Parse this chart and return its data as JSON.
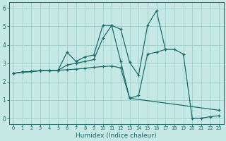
{
  "xlabel": "Humidex (Indice chaleur)",
  "bg_color": "#c5e8e5",
  "line_color": "#1a6b6b",
  "grid_color": "#9dcfcb",
  "xlim": [
    -0.5,
    23.5
  ],
  "ylim": [
    -0.3,
    6.3
  ],
  "xticks": [
    0,
    1,
    2,
    3,
    4,
    5,
    6,
    7,
    8,
    9,
    10,
    11,
    12,
    13,
    14,
    15,
    16,
    17,
    18,
    19,
    20,
    21,
    22,
    23
  ],
  "yticks": [
    0,
    1,
    2,
    3,
    4,
    5,
    6
  ],
  "line1_x": [
    0,
    1,
    2,
    3,
    4,
    5,
    6,
    7,
    8,
    9,
    10,
    11,
    12,
    13,
    14,
    15,
    16,
    17,
    18,
    19,
    20,
    21,
    22,
    23
  ],
  "line1_y": [
    2.45,
    2.52,
    2.55,
    2.6,
    2.6,
    2.62,
    2.65,
    2.68,
    2.73,
    2.78,
    2.82,
    2.85,
    2.75,
    1.1,
    1.25,
    3.5,
    3.6,
    3.75,
    3.75,
    3.5,
    0.02,
    0.02,
    0.1,
    0.15
  ],
  "line2_x": [
    0,
    1,
    2,
    3,
    4,
    5,
    6,
    7,
    8,
    9,
    10,
    11,
    12,
    13,
    14,
    15,
    16,
    17
  ],
  "line2_y": [
    2.45,
    2.52,
    2.55,
    2.6,
    2.6,
    2.62,
    2.9,
    3.0,
    3.1,
    3.2,
    4.35,
    5.05,
    4.85,
    3.05,
    2.35,
    5.05,
    5.85,
    3.75
  ],
  "line3_x": [
    0,
    1,
    2,
    3,
    4,
    5,
    6,
    7,
    8,
    9,
    10,
    11,
    12,
    13,
    23
  ],
  "line3_y": [
    2.45,
    2.52,
    2.55,
    2.6,
    2.6,
    2.62,
    3.6,
    3.1,
    3.35,
    3.45,
    5.05,
    5.05,
    3.1,
    1.1,
    0.45
  ]
}
